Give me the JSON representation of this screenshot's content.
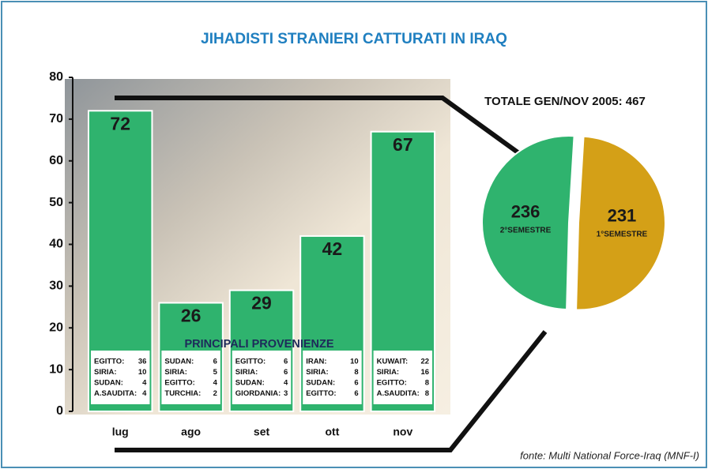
{
  "chart_data": [
    {
      "type": "bar",
      "title": "JIHADISTI STRANIERI CATTURATI IN IRAQ",
      "annotation": "PRINCIPALI PROVENIENZE",
      "categories": [
        "lug",
        "ago",
        "set",
        "ott",
        "nov"
      ],
      "values": [
        72,
        26,
        29,
        42,
        67
      ],
      "color": "#2fb36e",
      "ylim": [
        0,
        80
      ],
      "yticks": [
        0,
        10,
        20,
        30,
        40,
        50,
        60,
        70,
        80
      ],
      "origins": [
        [
          {
            "name": "EGITTO:",
            "value": 36
          },
          {
            "name": "SIRIA:",
            "value": 10
          },
          {
            "name": "SUDAN:",
            "value": 4
          },
          {
            "name": "A.SAUDITA:",
            "value": 4
          }
        ],
        [
          {
            "name": "SUDAN:",
            "value": 6
          },
          {
            "name": "SIRIA:",
            "value": 5
          },
          {
            "name": "EGITTO:",
            "value": 4
          },
          {
            "name": "TURCHIA:",
            "value": 2
          }
        ],
        [
          {
            "name": "EGITTO:",
            "value": 6
          },
          {
            "name": "SIRIA:",
            "value": 6
          },
          {
            "name": "SUDAN:",
            "value": 4
          },
          {
            "name": "GIORDANIA:",
            "value": 3
          }
        ],
        [
          {
            "name": "IRAN:",
            "value": 10
          },
          {
            "name": "SIRIA:",
            "value": 8
          },
          {
            "name": "SUDAN:",
            "value": 6
          },
          {
            "name": "EGITTO:",
            "value": 6
          }
        ],
        [
          {
            "name": "KUWAIT:",
            "value": 22
          },
          {
            "name": "SIRIA:",
            "value": 16
          },
          {
            "name": "EGITTO:",
            "value": 8
          },
          {
            "name": "A.SAUDITA:",
            "value": 8
          }
        ]
      ]
    },
    {
      "type": "pie",
      "title": "TOTALE GEN/NOV 2005: 467",
      "categories": [
        "1°SEMESTRE",
        "2°SEMESTRE"
      ],
      "values": [
        231,
        236
      ],
      "colors": [
        "#d4a017",
        "#2fb36e"
      ]
    }
  ],
  "source": "fonte: Multi National Force-Iraq (MNF-I)"
}
